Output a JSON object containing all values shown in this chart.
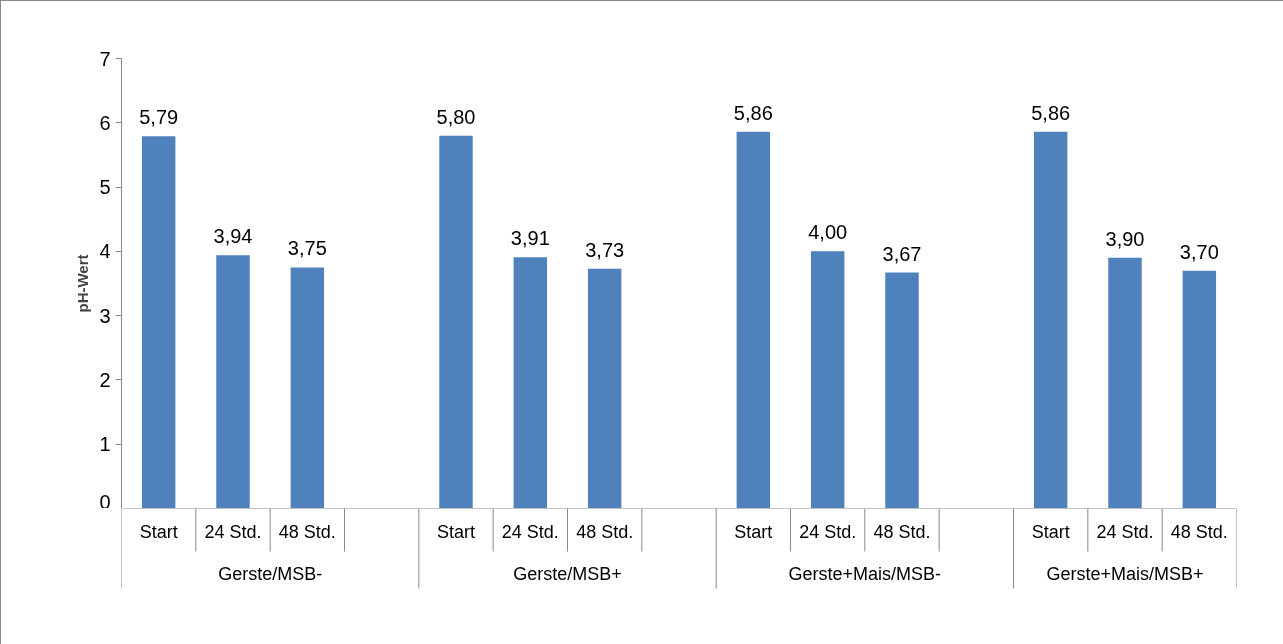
{
  "chart_data": {
    "type": "bar",
    "categories": [
      "Start",
      "24 Std.",
      "48 Std.",
      null,
      "Start",
      "24 Std.",
      "48 Std.",
      null,
      "Start",
      "24 Std.",
      "48 Std.",
      null,
      "Start",
      "24 Std.",
      "48 Std."
    ],
    "values": [
      5.79,
      3.94,
      3.75,
      null,
      5.8,
      3.91,
      3.73,
      null,
      5.86,
      4.0,
      3.67,
      null,
      5.86,
      3.9,
      3.7
    ],
    "value_labels": [
      "5,79",
      "3,94",
      "3,75",
      null,
      "5,80",
      "3,91",
      "3,73",
      null,
      "5,86",
      "4,00",
      "3,67",
      null,
      "5,86",
      "3,90",
      "3,70"
    ],
    "color": "#4f81bd",
    "ylabel": "pH-Wert",
    "ylim": [
      0,
      7
    ],
    "yticks": [
      0,
      1,
      2,
      3,
      4,
      5,
      6,
      7
    ],
    "annotations": [
      "Gerste/MSB-",
      "Gerste/MSB+",
      "Gerste+Mais/MSB-",
      "Gerste+Mais/MSB+"
    ]
  }
}
